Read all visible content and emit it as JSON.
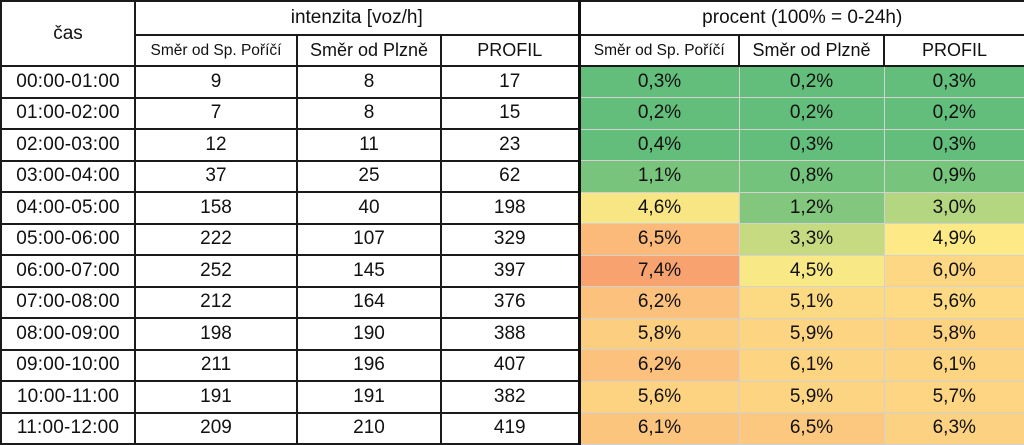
{
  "table": {
    "header_cas": "čas",
    "group_intenzita": "intenzita [voz/h]",
    "group_procent": "procent (100% = 0-24h)",
    "subheaders": [
      "Směr od Sp. Poříčí",
      "Směr od Plzně",
      "PROFIL",
      "Směr od Sp. Poříčí",
      "Směr od Plzně",
      "PROFIL"
    ],
    "rows": [
      {
        "time": "00:00-01:00",
        "a": "9",
        "b": "8",
        "p": "17",
        "pa": "0,3%",
        "pb": "0,2%",
        "pp": "0,3%"
      },
      {
        "time": "01:00-02:00",
        "a": "7",
        "b": "8",
        "p": "15",
        "pa": "0,2%",
        "pb": "0,2%",
        "pp": "0,2%"
      },
      {
        "time": "02:00-03:00",
        "a": "12",
        "b": "11",
        "p": "23",
        "pa": "0,4%",
        "pb": "0,3%",
        "pp": "0,3%"
      },
      {
        "time": "03:00-04:00",
        "a": "37",
        "b": "25",
        "p": "62",
        "pa": "1,1%",
        "pb": "0,8%",
        "pp": "0,9%"
      },
      {
        "time": "04:00-05:00",
        "a": "158",
        "b": "40",
        "p": "198",
        "pa": "4,6%",
        "pb": "1,2%",
        "pp": "3,0%"
      },
      {
        "time": "05:00-06:00",
        "a": "222",
        "b": "107",
        "p": "329",
        "pa": "6,5%",
        "pb": "3,3%",
        "pp": "4,9%"
      },
      {
        "time": "06:00-07:00",
        "a": "252",
        "b": "145",
        "p": "397",
        "pa": "7,4%",
        "pb": "4,5%",
        "pp": "6,0%"
      },
      {
        "time": "07:00-08:00",
        "a": "212",
        "b": "164",
        "p": "376",
        "pa": "6,2%",
        "pb": "5,1%",
        "pp": "5,6%"
      },
      {
        "time": "08:00-09:00",
        "a": "198",
        "b": "190",
        "p": "388",
        "pa": "5,8%",
        "pb": "5,9%",
        "pp": "5,8%"
      },
      {
        "time": "09:00-10:00",
        "a": "211",
        "b": "196",
        "p": "407",
        "pa": "6,2%",
        "pb": "6,1%",
        "pp": "6,1%"
      },
      {
        "time": "10:00-11:00",
        "a": "191",
        "b": "191",
        "p": "382",
        "pa": "5,6%",
        "pb": "5,9%",
        "pp": "5,7%"
      },
      {
        "time": "11:00-12:00",
        "a": "209",
        "b": "210",
        "p": "419",
        "pa": "6,1%",
        "pb": "6,5%",
        "pp": "6,3%"
      }
    ],
    "heat_colors": {
      "pa": [
        "#63be7b",
        "#63be7b",
        "#64be7b",
        "#79c47c",
        "#f8e685",
        "#fbb97a",
        "#f8a36f",
        "#fbc17d",
        "#fcce80",
        "#fbc17d",
        "#fdd281",
        "#fbc57e"
      ],
      "pb": [
        "#63be7b",
        "#63be7b",
        "#64be7b",
        "#74c37c",
        "#82c77d",
        "#c6db81",
        "#f9e986",
        "#fcda83",
        "#fdd582",
        "#fdd482",
        "#fdd582",
        "#fcc87f"
      ],
      "pp": [
        "#63be7b",
        "#63be7b",
        "#63be7b",
        "#77c47c",
        "#b4d680",
        "#fde986",
        "#fdd783",
        "#fdda83",
        "#fdd382",
        "#fdd482",
        "#fdd583",
        "#fcd181"
      ]
    }
  }
}
